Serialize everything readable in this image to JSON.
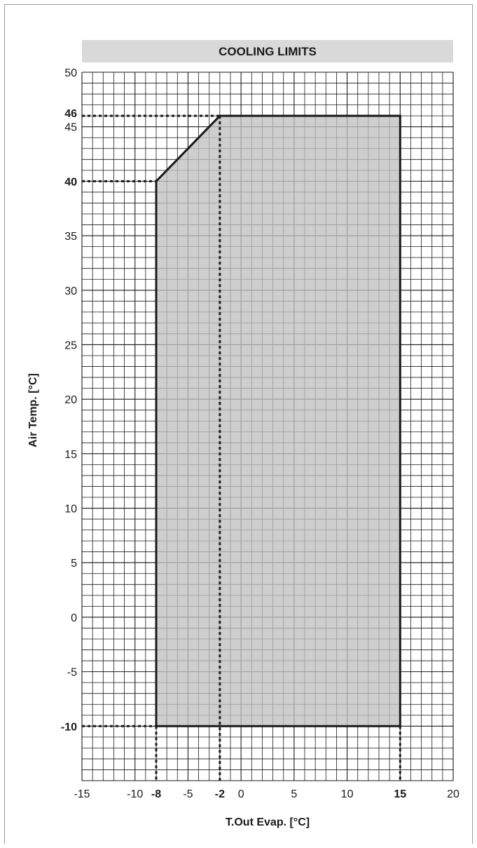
{
  "chart_data": {
    "type": "area",
    "title": "COOLING LIMITS",
    "xlabel": "T.Out Evap. [°C]",
    "ylabel": "Air Temp. [°C]",
    "xlim": [
      -15,
      20
    ],
    "ylim": [
      -15,
      50
    ],
    "grid": true,
    "x_ticks": [
      -15,
      -10,
      -5,
      0,
      5,
      10,
      15,
      20
    ],
    "y_ticks": [
      -5,
      0,
      5,
      10,
      15,
      20,
      25,
      30,
      35,
      40,
      45,
      50
    ],
    "highlight_x": [
      -8,
      -2,
      15
    ],
    "highlight_y": [
      -10,
      40,
      46
    ],
    "series": [
      {
        "x": [
          -8,
          -8,
          -2,
          15,
          15
        ],
        "y": [
          -10,
          40,
          46,
          46,
          -10
        ]
      }
    ],
    "colors": {
      "fill": "#c0c0c0",
      "line": "#1a1a1a",
      "grid": "#1a1a1a",
      "title_band": "#d9d9d9"
    }
  }
}
